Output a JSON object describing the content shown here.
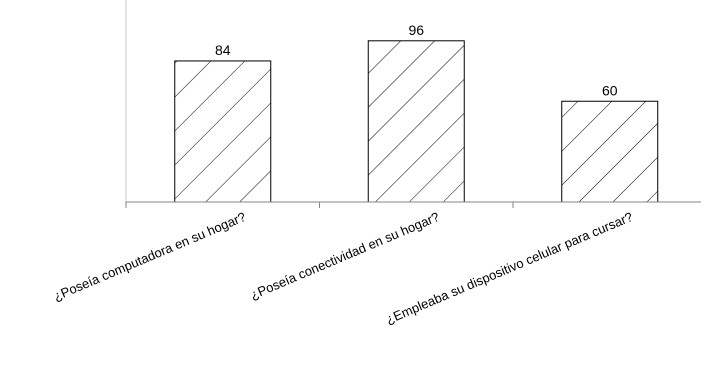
{
  "chart_data": {
    "type": "bar",
    "categories": [
      "¿Poseía computadora en su hogar?",
      "¿Poseía conectividad en su hogar?",
      "¿Empleaba su dispositivo celular para cursar?"
    ],
    "values": [
      84,
      96,
      60
    ],
    "ylim": [
      0,
      120
    ],
    "grid": false,
    "legend": "none",
    "bar_pattern": "diagonal-hatch",
    "bar_stroke_color": "#000000",
    "axis_color": "#868686"
  }
}
